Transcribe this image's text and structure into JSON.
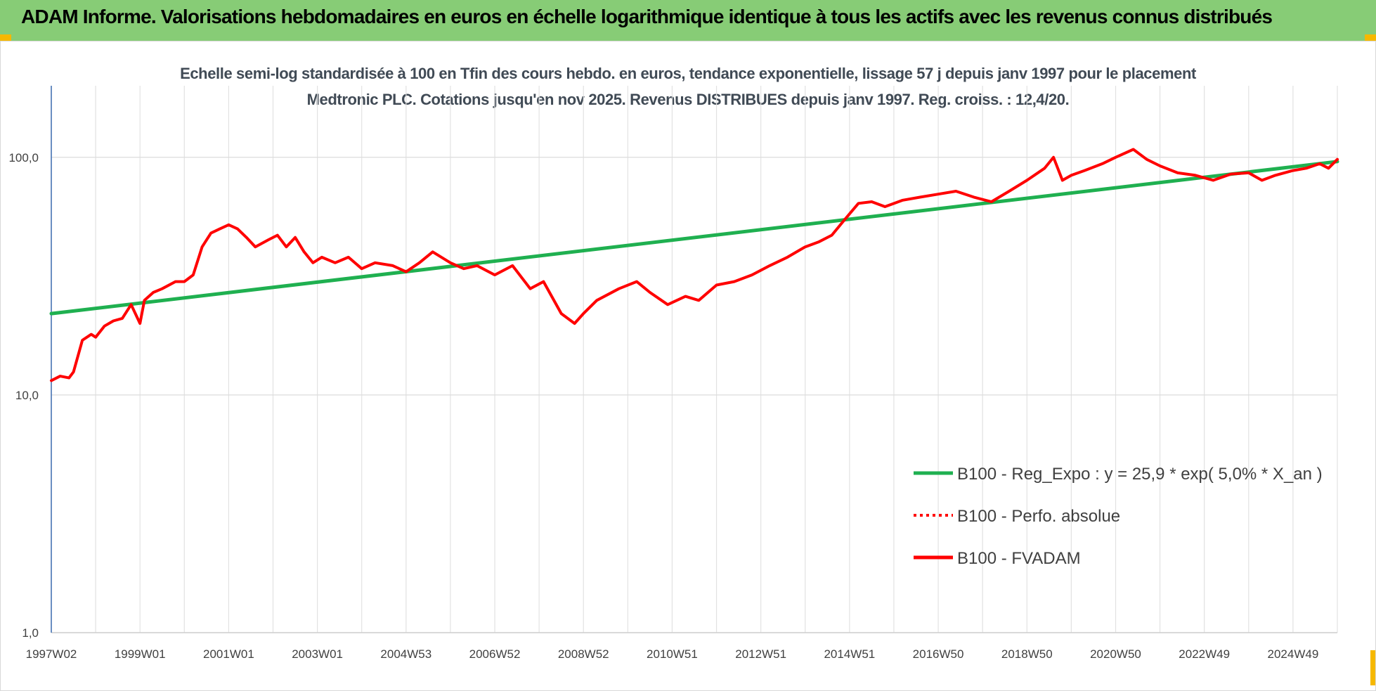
{
  "banner": {
    "title": "ADAM Informe. Valorisations hebdomadaires en euros en échelle logarithmique identique à tous les actifs avec les revenus connus distribués"
  },
  "chart_data": {
    "type": "line",
    "title": "Echelle semi-log standardisée à 100 en Tfin des cours hebdo. en euros, tendance exponentielle, lissage 57 j depuis janv 1997 pour le placement Medtronic PLC. Cotations jusqu'en nov 2025. Revenus DISTRIBUES depuis janv 1997. Reg. croiss. : 12,4/20.",
    "y_scale": "log",
    "ylim": [
      1,
      200
    ],
    "xlim": [
      1997.0,
      2026.0
    ],
    "y_ticks": [
      {
        "value": 1,
        "label": "1,0"
      },
      {
        "value": 10,
        "label": "10,0"
      },
      {
        "value": 100,
        "label": "100,0"
      }
    ],
    "x_ticks": [
      {
        "value": 1997.0,
        "label": "1997W02"
      },
      {
        "value": 1999.0,
        "label": "1999W01"
      },
      {
        "value": 2001.0,
        "label": "2001W01"
      },
      {
        "value": 2003.0,
        "label": "2003W01"
      },
      {
        "value": 2005.0,
        "label": "2004W53"
      },
      {
        "value": 2007.0,
        "label": "2006W52"
      },
      {
        "value": 2009.0,
        "label": "2008W52"
      },
      {
        "value": 2011.0,
        "label": "2010W51"
      },
      {
        "value": 2013.0,
        "label": "2012W51"
      },
      {
        "value": 2015.0,
        "label": "2014W51"
      },
      {
        "value": 2017.0,
        "label": "2016W50"
      },
      {
        "value": 2019.0,
        "label": "2018W50"
      },
      {
        "value": 2021.0,
        "label": "2020W50"
      },
      {
        "value": 2023.0,
        "label": "2022W49"
      },
      {
        "value": 2025.0,
        "label": "2024W49"
      }
    ],
    "grid": true,
    "legend_position": "bottom-right",
    "series": [
      {
        "name": "B100 - Reg_Expo : y = 25,9 * exp( 5,0% *  X_an )",
        "color": "#1fb050",
        "style": "solid",
        "x": [
          1997.0,
          2026.0
        ],
        "y": [
          22,
          96
        ]
      },
      {
        "name": "B100 - Perfo. absolue",
        "color": "#ff0000",
        "style": "dotted",
        "x": [],
        "y": []
      },
      {
        "name": "B100 - FVADAM",
        "color": "#ff0000",
        "style": "solid",
        "x": [
          1997.0,
          1997.2,
          1997.4,
          1997.5,
          1997.7,
          1997.9,
          1998.0,
          1998.2,
          1998.4,
          1998.6,
          1998.8,
          1999.0,
          1999.1,
          1999.3,
          1999.5,
          1999.8,
          2000.0,
          2000.2,
          2000.4,
          2000.6,
          2000.8,
          2001.0,
          2001.2,
          2001.4,
          2001.6,
          2001.9,
          2002.1,
          2002.3,
          2002.5,
          2002.7,
          2002.9,
          2003.1,
          2003.4,
          2003.7,
          2004.0,
          2004.3,
          2004.7,
          2005.0,
          2005.3,
          2005.6,
          2006.0,
          2006.3,
          2006.6,
          2007.0,
          2007.4,
          2007.8,
          2008.1,
          2008.5,
          2008.8,
          2009.0,
          2009.3,
          2009.8,
          2010.2,
          2010.5,
          2010.9,
          2011.3,
          2011.6,
          2012.0,
          2012.4,
          2012.8,
          2013.2,
          2013.6,
          2014.0,
          2014.3,
          2014.6,
          2014.9,
          2015.2,
          2015.5,
          2015.8,
          2016.2,
          2016.6,
          2017.0,
          2017.4,
          2017.8,
          2018.2,
          2018.6,
          2019.0,
          2019.4,
          2019.6,
          2019.8,
          2020.0,
          2020.3,
          2020.7,
          2021.0,
          2021.4,
          2021.7,
          2022.0,
          2022.4,
          2022.8,
          2023.2,
          2023.6,
          2024.0,
          2024.3,
          2024.6,
          2025.0,
          2025.3,
          2025.6,
          2025.8,
          2026.0
        ],
        "y": [
          11.5,
          12,
          11.8,
          12.5,
          17,
          18,
          17.5,
          19.5,
          20.5,
          21,
          24,
          20,
          25,
          27,
          28,
          30,
          30,
          32,
          42,
          48,
          50,
          52,
          50,
          46,
          42,
          45,
          47,
          42,
          46,
          40,
          36,
          38,
          36,
          38,
          34,
          36,
          35,
          33,
          36,
          40,
          36,
          34,
          35,
          32,
          35,
          28,
          30,
          22,
          20,
          22,
          25,
          28,
          30,
          27,
          24,
          26,
          25,
          29,
          30,
          32,
          35,
          38,
          42,
          44,
          47,
          55,
          64,
          65,
          62,
          66,
          68,
          70,
          72,
          68,
          65,
          72,
          80,
          90,
          100,
          80,
          84,
          88,
          94,
          100,
          108,
          98,
          92,
          86,
          84,
          80,
          85,
          86,
          80,
          84,
          88,
          90,
          94,
          90,
          98
        ]
      }
    ]
  }
}
